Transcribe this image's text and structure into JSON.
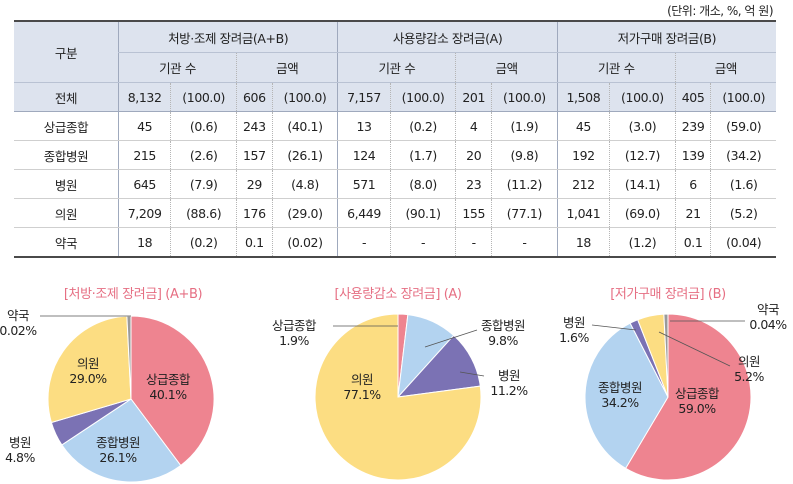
{
  "unit_note": "(단위: 개소, %, 억 원)",
  "table": {
    "corner": "구분",
    "groups": [
      "처방·조제 장려금(A+B)",
      "사용량감소 장려금(A)",
      "저가구매 장려금(B)"
    ],
    "subheaders": [
      "기관 수",
      "금액",
      "기관 수",
      "금액",
      "기관 수",
      "금액"
    ],
    "rows": [
      {
        "label": "전체",
        "cells": [
          "8,132",
          "(100.0)",
          "606",
          "(100.0)",
          "7,157",
          "(100.0)",
          "201",
          "(100.0)",
          "1,508",
          "(100.0)",
          "405",
          "(100.0)"
        ]
      },
      {
        "label": "상급종합",
        "cells": [
          "45",
          "(0.6)",
          "243",
          "(40.1)",
          "13",
          "(0.2)",
          "4",
          "(1.9)",
          "45",
          "(3.0)",
          "239",
          "(59.0)"
        ]
      },
      {
        "label": "종합병원",
        "cells": [
          "215",
          "(2.6)",
          "157",
          "(26.1)",
          "124",
          "(1.7)",
          "20",
          "(9.8)",
          "192",
          "(12.7)",
          "139",
          "(34.2)"
        ]
      },
      {
        "label": "병원",
        "cells": [
          "645",
          "(7.9)",
          "29",
          "(4.8)",
          "571",
          "(8.0)",
          "23",
          "(11.2)",
          "212",
          "(14.1)",
          "6",
          "(1.6)"
        ]
      },
      {
        "label": "의원",
        "cells": [
          "7,209",
          "(88.6)",
          "176",
          "(29.0)",
          "6,449",
          "(90.1)",
          "155",
          "(77.1)",
          "1,041",
          "(69.0)",
          "21",
          "(5.2)"
        ]
      },
      {
        "label": "약국",
        "cells": [
          "18",
          "(0.2)",
          "0.1",
          "(0.02)",
          "-",
          "-",
          "-",
          "-",
          "18",
          "(1.2)",
          "0.1",
          "(0.04)"
        ]
      }
    ]
  },
  "colors": {
    "상급종합": "#ee8490",
    "종합병원": "#b3d3f0",
    "병원": "#7b72b4",
    "의원": "#fcdd82",
    "약국": "#9a9a9a"
  },
  "chart_data": [
    {
      "type": "pie",
      "title": "[처방·조제 장려금] (A+B)",
      "categories": [
        "상급종합",
        "종합병원",
        "병원",
        "의원",
        "약국"
      ],
      "values": [
        40.1,
        26.1,
        4.8,
        29.0,
        0.02
      ],
      "value_labels": [
        "40.1%",
        "26.1%",
        "4.8%",
        "29.0%",
        "0.02%"
      ]
    },
    {
      "type": "pie",
      "title": "[사용량감소 장려금] (A)",
      "categories": [
        "상급종합",
        "종합병원",
        "병원",
        "의원"
      ],
      "values": [
        1.9,
        9.8,
        11.2,
        77.1
      ],
      "value_labels": [
        "1.9%",
        "9.8%",
        "11.2%",
        "77.1%"
      ]
    },
    {
      "type": "pie",
      "title": "[저가구매 장려금] (B)",
      "categories": [
        "상급종합",
        "종합병원",
        "병원",
        "의원",
        "약국"
      ],
      "values": [
        59.0,
        34.2,
        1.6,
        5.2,
        0.04
      ],
      "value_labels": [
        "59.0%",
        "34.2%",
        "1.6%",
        "5.2%",
        "0.04%"
      ]
    }
  ]
}
